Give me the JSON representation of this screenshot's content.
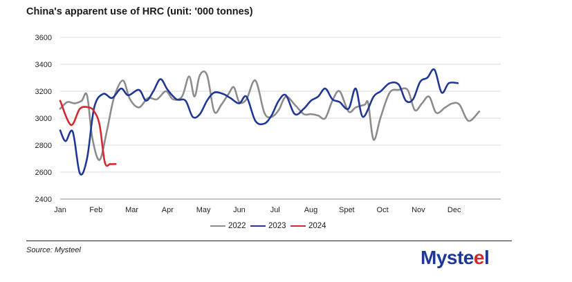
{
  "title": "China's apparent use of HRC (unit: '000 tonnes)",
  "source": "Source: Mysteel",
  "logo": {
    "part1": "Myste",
    "part2": "e",
    "part3": "l"
  },
  "chart_data": {
    "type": "line",
    "title": "China's apparent use of HRC (unit: '000 tonnes)",
    "x_tick_labels": [
      "Jan",
      "Feb",
      "Mar",
      "Apr",
      "May",
      "Jun",
      "Jul",
      "Aug",
      "Spet",
      "Oct",
      "Nov",
      "Dec"
    ],
    "x_note": "x values are in months (1 = Jan, 12 = Dec)",
    "xlim": [
      1,
      13.3
    ],
    "ylim": [
      2400,
      3600
    ],
    "y_ticks": [
      2400,
      2600,
      2800,
      3000,
      3200,
      3400,
      3600
    ],
    "grid": "horizontal",
    "legend": "bottom",
    "series": [
      {
        "name": "2022",
        "color": "#8c8c8c",
        "points": [
          [
            1.0,
            3070
          ],
          [
            1.2,
            3120
          ],
          [
            1.4,
            3110
          ],
          [
            1.6,
            3130
          ],
          [
            1.75,
            3170
          ],
          [
            1.9,
            2850
          ],
          [
            2.1,
            2690
          ],
          [
            2.3,
            2900
          ],
          [
            2.5,
            3150
          ],
          [
            2.75,
            3280
          ],
          [
            2.95,
            3140
          ],
          [
            3.2,
            3080
          ],
          [
            3.45,
            3150
          ],
          [
            3.7,
            3140
          ],
          [
            3.95,
            3200
          ],
          [
            4.15,
            3140
          ],
          [
            4.4,
            3160
          ],
          [
            4.6,
            3310
          ],
          [
            4.75,
            3160
          ],
          [
            4.9,
            3320
          ],
          [
            5.1,
            3320
          ],
          [
            5.3,
            3050
          ],
          [
            5.5,
            3100
          ],
          [
            5.7,
            3180
          ],
          [
            5.85,
            3230
          ],
          [
            6.0,
            3120
          ],
          [
            6.2,
            3140
          ],
          [
            6.45,
            3280
          ],
          [
            6.7,
            3040
          ],
          [
            6.9,
            3010
          ],
          [
            7.1,
            3060
          ],
          [
            7.3,
            3160
          ],
          [
            7.55,
            3100
          ],
          [
            7.8,
            3030
          ],
          [
            8.0,
            3030
          ],
          [
            8.2,
            3020
          ],
          [
            8.4,
            3000
          ],
          [
            8.6,
            3130
          ],
          [
            8.8,
            3200
          ],
          [
            9.05,
            3050
          ],
          [
            9.25,
            3080
          ],
          [
            9.5,
            3100
          ],
          [
            9.6,
            3110
          ],
          [
            9.75,
            2840
          ],
          [
            9.95,
            3010
          ],
          [
            10.2,
            3190
          ],
          [
            10.45,
            3210
          ],
          [
            10.7,
            3210
          ],
          [
            10.9,
            3060
          ],
          [
            11.1,
            3110
          ],
          [
            11.3,
            3160
          ],
          [
            11.5,
            3040
          ],
          [
            11.75,
            3080
          ],
          [
            11.95,
            3110
          ],
          [
            12.15,
            3100
          ],
          [
            12.4,
            2980
          ],
          [
            12.7,
            3050
          ]
        ]
      },
      {
        "name": "2023",
        "color": "#1f3796",
        "points": [
          [
            1.0,
            2910
          ],
          [
            1.15,
            2830
          ],
          [
            1.35,
            2900
          ],
          [
            1.55,
            2590
          ],
          [
            1.75,
            2700
          ],
          [
            1.95,
            3080
          ],
          [
            2.2,
            3180
          ],
          [
            2.45,
            3150
          ],
          [
            2.7,
            3220
          ],
          [
            2.9,
            3170
          ],
          [
            3.2,
            3210
          ],
          [
            3.4,
            3130
          ],
          [
            3.6,
            3200
          ],
          [
            3.8,
            3290
          ],
          [
            4.0,
            3210
          ],
          [
            4.25,
            3140
          ],
          [
            4.5,
            3130
          ],
          [
            4.7,
            3010
          ],
          [
            4.9,
            3030
          ],
          [
            5.1,
            3130
          ],
          [
            5.3,
            3190
          ],
          [
            5.55,
            3180
          ],
          [
            5.75,
            3150
          ],
          [
            6.0,
            3110
          ],
          [
            6.2,
            3160
          ],
          [
            6.45,
            2980
          ],
          [
            6.7,
            2960
          ],
          [
            6.9,
            3020
          ],
          [
            7.1,
            3130
          ],
          [
            7.3,
            3170
          ],
          [
            7.55,
            3030
          ],
          [
            7.8,
            3070
          ],
          [
            8.0,
            3130
          ],
          [
            8.2,
            3160
          ],
          [
            8.4,
            3220
          ],
          [
            8.6,
            3140
          ],
          [
            8.8,
            3120
          ],
          [
            9.05,
            3070
          ],
          [
            9.25,
            3220
          ],
          [
            9.45,
            3010
          ],
          [
            9.75,
            3160
          ],
          [
            9.95,
            3200
          ],
          [
            10.2,
            3260
          ],
          [
            10.45,
            3250
          ],
          [
            10.65,
            3130
          ],
          [
            10.85,
            3140
          ],
          [
            11.05,
            3270
          ],
          [
            11.25,
            3300
          ],
          [
            11.45,
            3360
          ],
          [
            11.65,
            3190
          ],
          [
            11.85,
            3260
          ],
          [
            12.1,
            3260
          ]
        ]
      },
      {
        "name": "2024",
        "color": "#d3282d",
        "points": [
          [
            1.0,
            3130
          ],
          [
            1.3,
            2950
          ],
          [
            1.55,
            3070
          ],
          [
            1.8,
            3080
          ],
          [
            1.95,
            3050
          ],
          [
            2.1,
            2950
          ],
          [
            2.25,
            2670
          ],
          [
            2.4,
            2660
          ],
          [
            2.55,
            2660
          ]
        ]
      }
    ]
  }
}
